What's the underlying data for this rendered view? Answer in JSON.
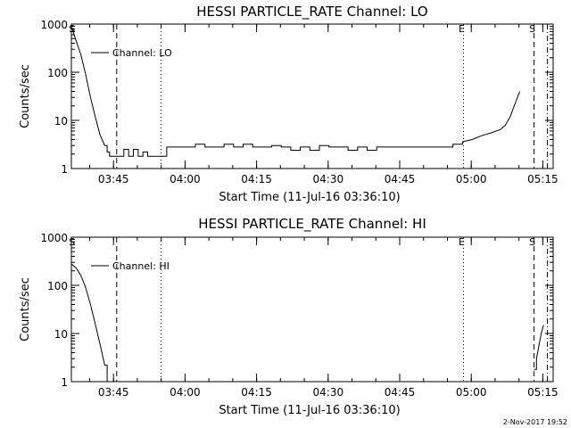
{
  "footer_timestamp": "2-Nov-2017 19:52",
  "chart_data": [
    {
      "type": "line",
      "title": "HESSI PARTICLE_RATE Channel: LO",
      "xlabel": "Start Time (11-Jul-16 03:36:10)",
      "ylabel": "Counts/sec",
      "yscale": "log",
      "ylim": [
        1,
        1000
      ],
      "xlim_minutes": [
        0,
        101
      ],
      "x_tick_labels": [
        "03:45",
        "04:00",
        "04:15",
        "04:30",
        "04:45",
        "05:00",
        "05:15"
      ],
      "x_ticks_minutes": [
        8.83,
        23.83,
        38.83,
        53.83,
        68.83,
        83.83,
        98.83
      ],
      "y_tick_labels": [
        "1",
        "10",
        "100",
        "1000"
      ],
      "y_ticks": [
        1,
        10,
        100,
        1000
      ],
      "legend": "Channel: LO",
      "series": [
        {
          "name": "Channel: LO",
          "x_minutes": [
            0,
            1,
            2,
            3,
            4,
            5,
            6,
            7,
            7.5,
            8,
            9,
            10,
            11,
            12,
            13,
            14,
            15,
            16,
            17,
            18,
            20,
            22,
            24,
            26,
            28,
            30,
            32,
            34,
            36,
            38,
            40,
            42,
            44,
            46,
            48,
            50,
            52,
            54,
            56,
            58,
            60,
            62,
            64,
            66,
            68,
            70,
            72,
            74,
            76,
            78,
            80,
            82,
            84,
            86,
            88,
            90,
            91,
            92,
            93,
            94
          ],
          "values": [
            900,
            450,
            230,
            90,
            30,
            12,
            5,
            3,
            2.2,
            1.8,
            1.8,
            1.8,
            2.5,
            1.8,
            2.5,
            1.8,
            2.2,
            1.8,
            1.8,
            1.8,
            2.8,
            2.8,
            2.8,
            3.2,
            2.8,
            2.8,
            3.2,
            2.8,
            3.2,
            2.8,
            2.8,
            3.0,
            2.8,
            2.4,
            2.8,
            2.4,
            3.0,
            2.8,
            2.8,
            2.4,
            2.8,
            2.4,
            2.8,
            2.8,
            2.8,
            2.8,
            2.8,
            2.8,
            2.8,
            2.8,
            3.2,
            3.6,
            4.0,
            4.8,
            5.5,
            6.5,
            8,
            12,
            22,
            40
          ]
        }
      ],
      "markers": [
        {
          "type": "label",
          "label": "S",
          "x_minutes": 0.5
        },
        {
          "type": "dashed",
          "x_minutes": 9.5
        },
        {
          "type": "dotted",
          "x_minutes": 18.8
        },
        {
          "type": "dotted",
          "label": "E",
          "x_minutes": 82.2
        },
        {
          "type": "dashed",
          "label": "S",
          "x_minutes": 97.0
        },
        {
          "type": "dashdot",
          "x_minutes": 99.8
        }
      ]
    },
    {
      "type": "line",
      "title": "HESSI PARTICLE_RATE Channel: HI",
      "xlabel": "Start Time (11-Jul-16 03:36:10)",
      "ylabel": "Counts/sec",
      "yscale": "log",
      "ylim": [
        1,
        1000
      ],
      "xlim_minutes": [
        0,
        101
      ],
      "x_tick_labels": [
        "03:45",
        "04:00",
        "04:15",
        "04:30",
        "04:45",
        "05:00",
        "05:15"
      ],
      "x_ticks_minutes": [
        8.83,
        23.83,
        38.83,
        53.83,
        68.83,
        83.83,
        98.83
      ],
      "y_tick_labels": [
        "1",
        "10",
        "100",
        "1000"
      ],
      "y_ticks": [
        1,
        10,
        100,
        1000
      ],
      "legend": "Channel: HI",
      "series": [
        {
          "name": "Channel: HI",
          "x_minutes": [
            0,
            1,
            2,
            3,
            4,
            5,
            6,
            7,
            7.5
          ],
          "values": [
            280,
            230,
            160,
            90,
            40,
            16,
            6,
            2.2,
            1
          ]
        },
        {
          "name": "Channel: HI (end)",
          "x_minutes": [
            97.0,
            97.5,
            98.0,
            98.5,
            99.0
          ],
          "values": [
            1.8,
            3.0,
            5.5,
            10,
            15
          ]
        }
      ],
      "markers": [
        {
          "type": "label",
          "label": "S",
          "x_minutes": 0.5
        },
        {
          "type": "dashed",
          "x_minutes": 9.5
        },
        {
          "type": "dotted",
          "x_minutes": 18.8
        },
        {
          "type": "dotted",
          "label": "E",
          "x_minutes": 82.2
        },
        {
          "type": "dashed",
          "label": "S",
          "x_minutes": 97.0
        },
        {
          "type": "dashdot",
          "x_minutes": 99.8
        }
      ]
    }
  ]
}
